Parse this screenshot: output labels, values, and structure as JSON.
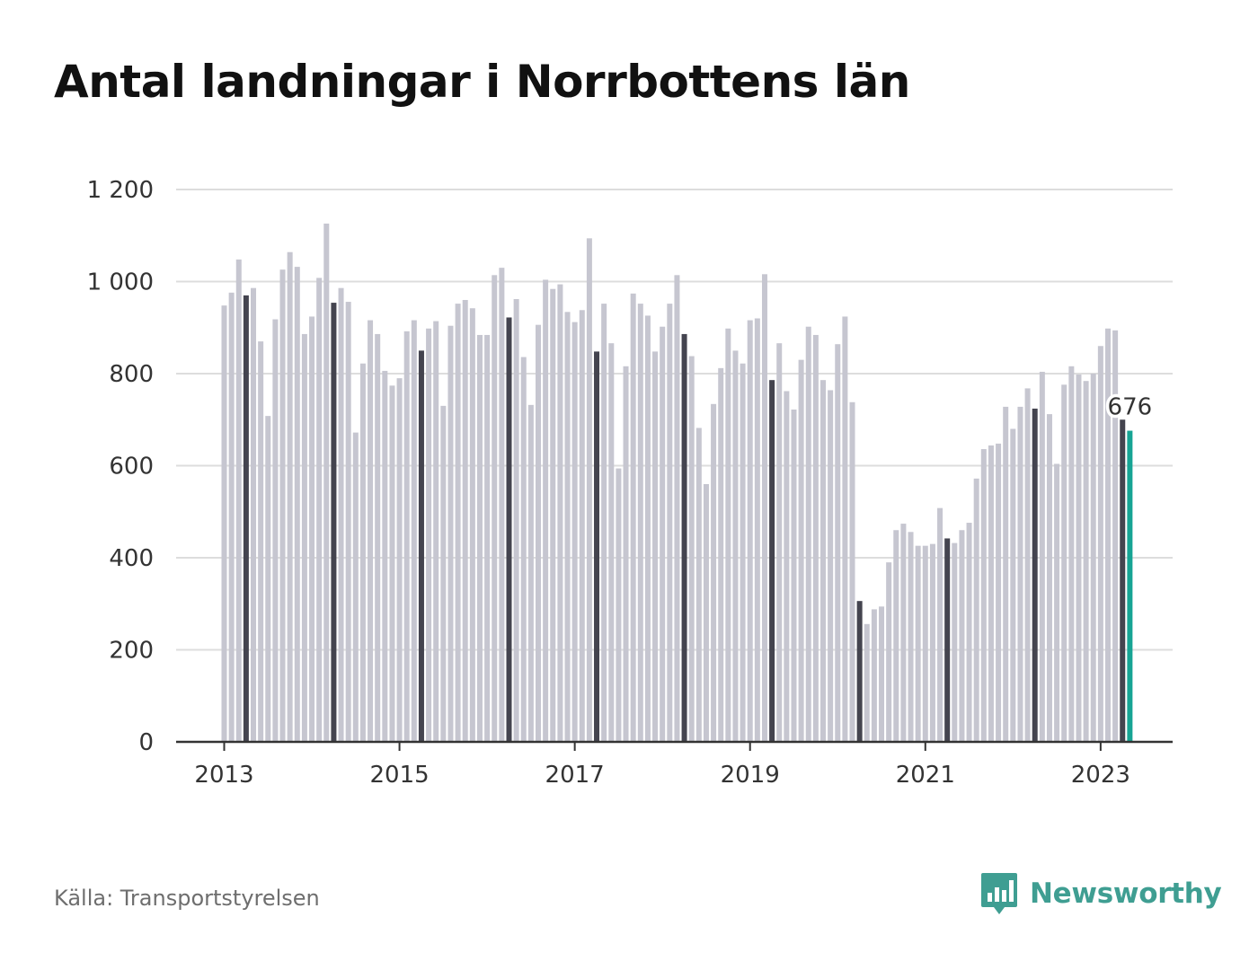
{
  "title": "Antal landningar i Norrbottens län",
  "source": "Källa: Transportstyrelsen",
  "brand": "Newsworthy",
  "colors": {
    "bar": "#c6c6d0",
    "highlight_bar": "#44444f",
    "current_bar": "#17a494",
    "grid": "#dddddd",
    "axis": "#333333",
    "brand": "#3f9e92"
  },
  "chart_data": {
    "type": "bar",
    "ylim": [
      0,
      1200
    ],
    "yticks": [
      0,
      200,
      400,
      600,
      800,
      1000,
      1200
    ],
    "ytick_labels": [
      "0",
      "200",
      "400",
      "600",
      "800",
      "1 000",
      "1 200"
    ],
    "xtick_labels": [
      "2013",
      "2015",
      "2017",
      "2019",
      "2021",
      "2023"
    ],
    "start": "2013-01",
    "highlight_month": 4,
    "annotation": {
      "label": "676",
      "index": 124
    },
    "values": [
      948,
      976,
      1048,
      970,
      986,
      870,
      708,
      918,
      1026,
      1064,
      1032,
      886,
      924,
      1008,
      1126,
      954,
      986,
      956,
      672,
      822,
      916,
      886,
      806,
      774,
      790,
      892,
      916,
      850,
      898,
      914,
      730,
      904,
      952,
      960,
      942,
      884,
      884,
      1014,
      1030,
      922,
      962,
      836,
      732,
      906,
      1004,
      984,
      994,
      934,
      912,
      938,
      1094,
      848,
      952,
      866,
      594,
      816,
      974,
      952,
      926,
      848,
      902,
      952,
      1014,
      886,
      838,
      682,
      560,
      734,
      812,
      898,
      850,
      822,
      916,
      920,
      1016,
      786,
      866,
      762,
      722,
      830,
      902,
      884,
      786,
      764,
      864,
      924,
      738,
      306,
      256,
      288,
      294,
      390,
      460,
      474,
      456,
      426,
      426,
      430,
      508,
      442,
      432,
      460,
      476,
      572,
      636,
      644,
      648,
      728,
      680,
      728,
      768,
      724,
      804,
      712,
      604,
      776,
      816,
      798,
      784,
      800,
      860,
      898,
      894,
      700,
      676
    ]
  }
}
